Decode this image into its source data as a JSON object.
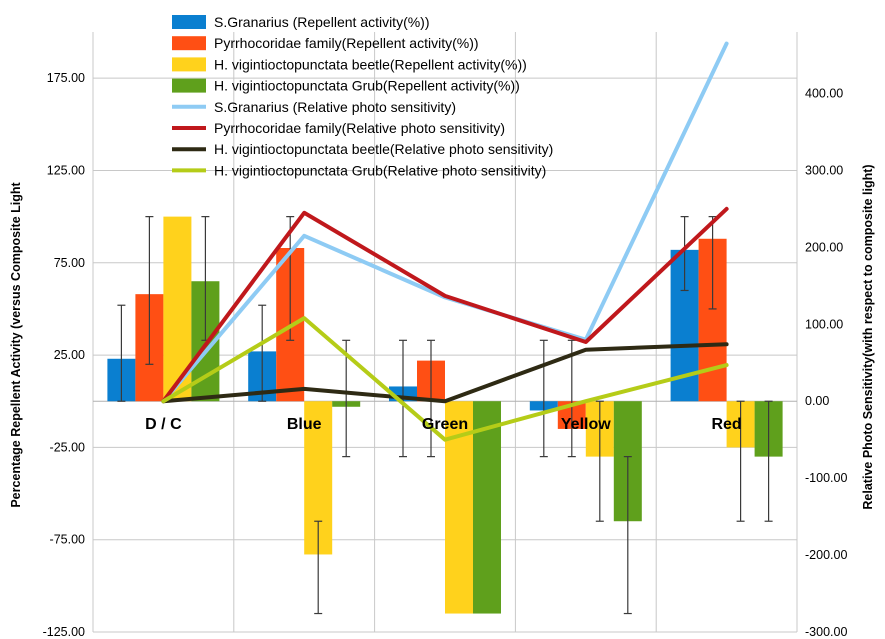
{
  "chart_data": {
    "type": "bar",
    "categories": [
      "D / C",
      "Blue",
      "Green",
      "Yellow",
      "Red"
    ],
    "ylabel": "Percentage Repellent Activity (versus Composite Light",
    "y2label": "Relative Photo Sensitivity(with respect to composite light)",
    "ylim": [
      -125,
      200
    ],
    "y2lim": [
      -300,
      480
    ],
    "yticks": [
      "175.00",
      "125.00",
      "75.00",
      "25.00",
      "-25.00",
      "-75.00",
      "-125.00"
    ],
    "y2ticks": [
      "400.00",
      "300.00",
      "200.00",
      "100.00",
      "0.00",
      "-100.00",
      "-200.00",
      "-300.00"
    ],
    "grid": true,
    "legend_position": "top",
    "bar_series": [
      {
        "name": "S.Granarius (Repellent activity(%))",
        "color": "#0a7fd0",
        "values": [
          23,
          27,
          8,
          -5,
          82
        ],
        "err_low": [
          0,
          0,
          -30,
          -30,
          60
        ],
        "err_high": [
          52,
          52,
          33,
          33,
          100
        ]
      },
      {
        "name": "Pyrrhocoridae family(Repellent activity(%))",
        "color": "#ff4f14",
        "values": [
          58,
          83,
          22,
          -15,
          88
        ],
        "err_low": [
          20,
          33,
          -30,
          -30,
          50
        ],
        "err_high": [
          100,
          100,
          33,
          33,
          100
        ]
      },
      {
        "name": "H. vigintioctopunctata beetle(Repellent activity(%))",
        "color": "#ffd21c",
        "values": [
          100,
          -83,
          -115,
          -30,
          -25
        ],
        "err_low": [
          100,
          -115,
          -115,
          -65,
          -65
        ],
        "err_high": [
          100,
          -65,
          -115,
          0,
          0
        ]
      },
      {
        "name": "H. vigintioctopunctata Grub(Repellent activity(%))",
        "color": "#5fa01c",
        "values": [
          65,
          -3,
          -115,
          -65,
          -30
        ],
        "err_low": [
          33,
          -30,
          -115,
          -115,
          -65
        ],
        "err_high": [
          100,
          33,
          -115,
          -30,
          0
        ]
      }
    ],
    "line_series": [
      {
        "name": "S.Granarius (Relative photo sensitivity)",
        "color": "#8ecbf4",
        "values": [
          0,
          215,
          135,
          80,
          465
        ]
      },
      {
        "name": "Pyrrhocoridae family(Relative photo sensitivity)",
        "color": "#c0181c",
        "values": [
          0,
          245,
          137,
          77,
          250
        ]
      },
      {
        "name": "H. vigintioctopunctata beetle(Relative photo sensitivity)",
        "color": "#2e2a14",
        "values": [
          0,
          16,
          0,
          67,
          74
        ]
      },
      {
        "name": "H. vigintioctopunctata Grub(Relative photo sensitivity)",
        "color": "#b5cc18",
        "values": [
          0,
          108,
          -50,
          0,
          47
        ]
      }
    ]
  }
}
